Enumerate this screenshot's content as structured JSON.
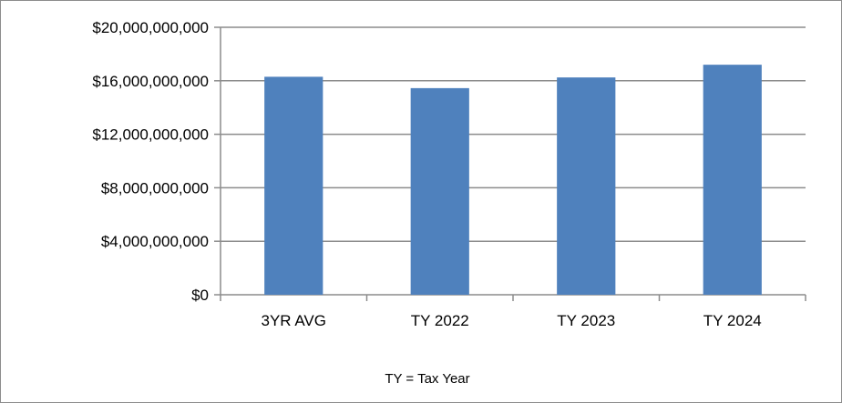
{
  "chart_data": {
    "type": "bar",
    "categories": [
      "3YR AVG",
      "TY 2022",
      "TY 2023",
      "TY 2024"
    ],
    "values": [
      16300000000,
      15450000000,
      16250000000,
      17200000000
    ],
    "y_ticks": [
      "$0",
      "$4,000,000,000",
      "$8,000,000,000",
      "$12,000,000,000",
      "$16,000,000,000",
      "$20,000,000,000"
    ],
    "y_tick_values": [
      0,
      4000000000,
      8000000000,
      12000000000,
      16000000000,
      20000000000
    ],
    "ylim": [
      0,
      20000000000
    ],
    "title": "",
    "xlabel": "",
    "ylabel": "",
    "note": "TY = Tax Year",
    "grid": true,
    "legend": "none",
    "bar_color": "#4f81bd",
    "grid_color": "#8c8c8c"
  }
}
